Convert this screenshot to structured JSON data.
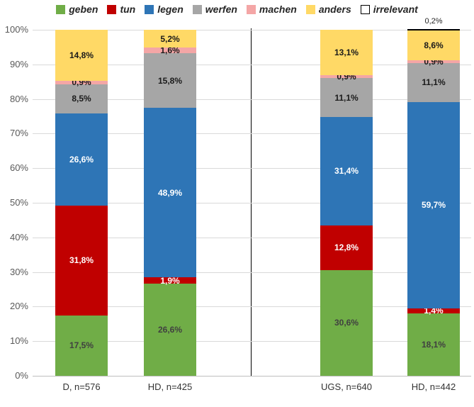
{
  "figure": {
    "background": "#FFFFFF",
    "gridline_color": "#D9D9D9",
    "axis_line_color": "#BFBFBF",
    "divider_color": "#000000"
  },
  "chart_data": {
    "type": "bar",
    "subtype": "stacked-100-percent-column",
    "title": "",
    "xlabel": "",
    "ylabel": "",
    "legend_position": "top",
    "gridlines": true,
    "group_divider_after_category": 2,
    "value_suffix": "%",
    "decimal_separator": ",",
    "categories": [
      "D, n=576",
      "HD, n=425",
      "UGS, n=640",
      "HD, n=442"
    ],
    "series": [
      {
        "name": "geben",
        "color": "#70AD47",
        "label_color": "#404040",
        "values": [
          17.5,
          26.6,
          30.6,
          18.1
        ]
      },
      {
        "name": "tun",
        "color": "#C00000",
        "label_color": "#FFFFFF",
        "values": [
          31.8,
          1.9,
          12.8,
          1.4
        ]
      },
      {
        "name": "legen",
        "color": "#2E75B6",
        "label_color": "#FFFFFF",
        "values": [
          26.6,
          48.9,
          31.4,
          59.7
        ]
      },
      {
        "name": "werfen",
        "color": "#A6A6A6",
        "label_color": "#1A1A1A",
        "values": [
          8.5,
          15.8,
          11.1,
          11.1
        ]
      },
      {
        "name": "machen",
        "color": "#F4A6A6",
        "label_color": "#1A1A1A",
        "values": [
          0.9,
          1.6,
          0.9,
          0.9
        ]
      },
      {
        "name": "anders",
        "color": "#FFD966",
        "label_color": "#1A1A1A",
        "values": [
          14.8,
          5.2,
          13.1,
          8.6
        ]
      },
      {
        "name": "irrelevant",
        "color": "#FFFFFF",
        "label_color": "#262626",
        "border": "#000000",
        "label_outside": true,
        "values": [
          0.0,
          0.0,
          0.0,
          0.2
        ]
      }
    ],
    "y_axis": {
      "min": 0,
      "max": 100,
      "tick_step": 10,
      "tick_labels": [
        "0%",
        "10%",
        "20%",
        "30%",
        "40%",
        "50%",
        "60%",
        "70%",
        "80%",
        "90%",
        "100%"
      ]
    }
  }
}
